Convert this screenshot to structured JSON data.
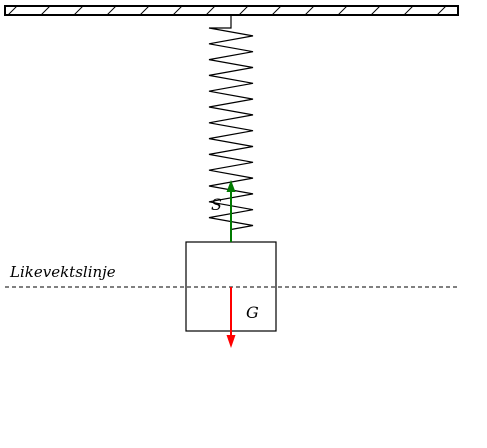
{
  "labels": {
    "equilibrium_line": "Likevektslinje",
    "spring_force": "S",
    "gravity_force": "G"
  },
  "colors": {
    "spring_force_arrow": "#007a00",
    "gravity_force_arrow": "#ff0000",
    "lines": "#000000"
  },
  "icons": {
    "ceiling": "hatched-ceiling-icon",
    "spring": "coil-spring-icon",
    "mass": "square-block-icon"
  }
}
